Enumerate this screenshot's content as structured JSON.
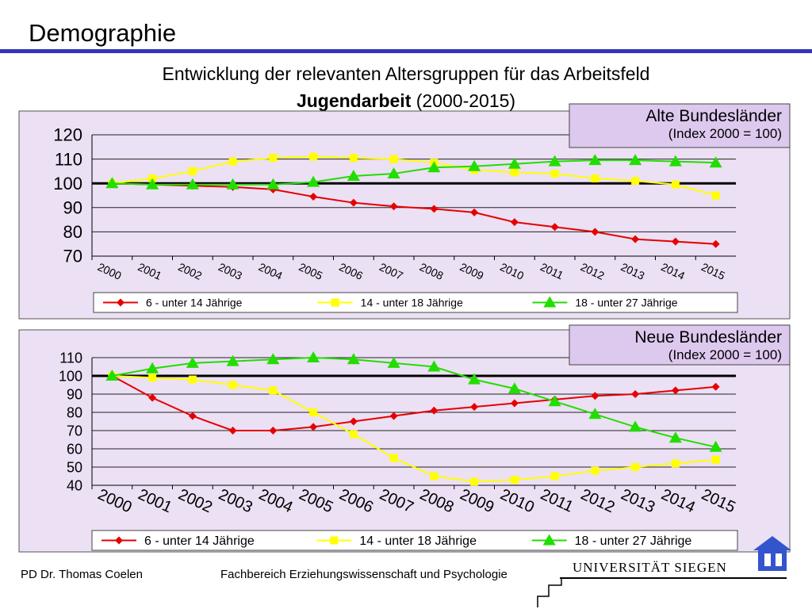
{
  "slide": {
    "title": "Demographie",
    "subtitle_line1": "Entwicklung der relevanten Altersgruppen für das Arbeitsfeld",
    "subtitle_bold": "Jugendarbeit",
    "subtitle_rest": " (2000-2015)"
  },
  "footer": {
    "author": "PD Dr. Thomas Coelen",
    "department": "Fachbereich Erziehungswissenschaft und Psychologie",
    "university": "UNIVERSITÄT  SIEGEN"
  },
  "colors": {
    "plot_background": "#ece0f4",
    "red": "#e60000",
    "yellow": "#ffff00",
    "green": "#22dd00",
    "title_rule": "#3333bb"
  },
  "chart_data": [
    {
      "type": "line",
      "box_title": "Alte Bundesländer",
      "box_subtitle": "(Index 2000 = 100)",
      "x": [
        "2000",
        "2001",
        "2002",
        "2003",
        "2004",
        "2005",
        "2006",
        "2007",
        "2008",
        "2009",
        "2010",
        "2011",
        "2012",
        "2013",
        "2014",
        "2015"
      ],
      "ylim": [
        70,
        120
      ],
      "yticks": [
        70,
        80,
        90,
        100,
        110,
        120
      ],
      "reference_line": 100,
      "grid": true,
      "legend_position": "bottom",
      "series": [
        {
          "name": "6 - unter 14 Jährige",
          "color": "red",
          "marker": "diamond",
          "values": [
            100,
            99.5,
            99,
            98.5,
            97.5,
            94.5,
            92,
            90.5,
            89.5,
            88,
            84,
            82,
            80,
            77,
            76,
            75
          ]
        },
        {
          "name": "14 - unter 18 Jährige",
          "color": "yellow",
          "marker": "square",
          "values": [
            100,
            102,
            105,
            109,
            110.5,
            111,
            110.5,
            110,
            108.5,
            105.5,
            104.5,
            104,
            102,
            101,
            99.5,
            95
          ]
        },
        {
          "name": "18 - unter 27 Jährige",
          "color": "green",
          "marker": "triangle",
          "values": [
            100,
            99.5,
            99.5,
            99.5,
            99.5,
            100.5,
            103,
            104,
            106.5,
            107,
            108,
            109,
            109.5,
            109.5,
            109,
            108.5
          ]
        }
      ]
    },
    {
      "type": "line",
      "box_title": "Neue Bundesländer",
      "box_subtitle": "(Index 2000 = 100)",
      "x": [
        "2000",
        "2001",
        "2002",
        "2003",
        "2004",
        "2005",
        "2006",
        "2007",
        "2008",
        "2009",
        "2010",
        "2011",
        "2012",
        "2013",
        "2014",
        "2015"
      ],
      "ylim": [
        40,
        110
      ],
      "yticks": [
        40,
        50,
        60,
        70,
        80,
        90,
        100,
        110
      ],
      "reference_line": 100,
      "grid": true,
      "legend_position": "bottom",
      "series": [
        {
          "name": "6 - unter 14 Jährige",
          "color": "red",
          "marker": "diamond",
          "values": [
            100,
            88,
            78,
            70,
            70,
            72,
            75,
            78,
            81,
            83,
            85,
            87,
            89,
            90,
            92,
            94
          ]
        },
        {
          "name": "14 - unter 18 Jährige",
          "color": "yellow",
          "marker": "square",
          "values": [
            100,
            99,
            98,
            95,
            92,
            80,
            68,
            55,
            45,
            42,
            43,
            45,
            48,
            50,
            52,
            54
          ]
        },
        {
          "name": "18 - unter 27 Jährige",
          "color": "green",
          "marker": "triangle",
          "values": [
            100,
            104,
            107,
            108,
            109,
            110,
            109,
            107,
            105,
            98,
            93,
            86,
            79,
            72,
            66,
            61
          ]
        }
      ]
    }
  ]
}
